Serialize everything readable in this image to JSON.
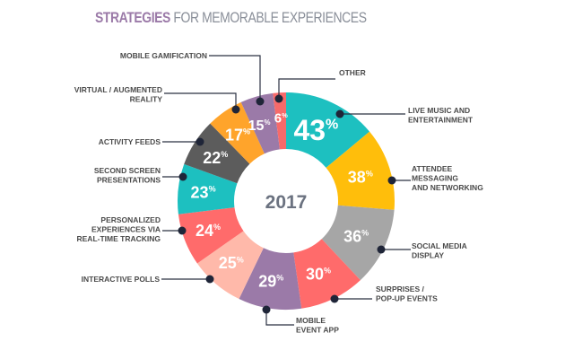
{
  "chart_data": {
    "type": "pie",
    "variant": "donut",
    "title_emphasis": "STRATEGIES",
    "title_rest": "FOR MEMORABLE EXPERIENCES",
    "center_label": "2017",
    "unit": "%",
    "slices": [
      {
        "label": [
          "LIVE MUSIC AND",
          "ENTERTAINMENT"
        ],
        "value": 43,
        "color": "#1dc0c0"
      },
      {
        "label": [
          "ATTENDEE",
          "MESSAGING",
          "AND NETWORKING"
        ],
        "value": 38,
        "color": "#ffbe0b"
      },
      {
        "label": [
          "SOCIAL MEDIA",
          "DISPLAY"
        ],
        "value": 36,
        "color": "#a6a6a6"
      },
      {
        "label": [
          "SURPRISES /",
          "POP-UP EVENTS"
        ],
        "value": 30,
        "color": "#ff6b6b"
      },
      {
        "label": [
          "MOBILE",
          "EVENT APP"
        ],
        "value": 29,
        "color": "#9b7aa8"
      },
      {
        "label": [
          "INTERACTIVE POLLS"
        ],
        "value": 25,
        "color": "#ffb9aa"
      },
      {
        "label": [
          "PERSONALIZED",
          "EXPERIENCES VIA",
          "REAL-TIME TRACKING"
        ],
        "value": 24,
        "color": "#ff6b6b"
      },
      {
        "label": [
          "SECOND SCREEN",
          "PRESENTATIONS"
        ],
        "value": 23,
        "color": "#1dc0c0"
      },
      {
        "label": [
          "ACTIVITY FEEDS"
        ],
        "value": 22,
        "color": "#5c5c5c"
      },
      {
        "label": [
          "VIRTUAL / AUGMENTED",
          "REALITY"
        ],
        "value": 17,
        "color": "#ffa42b"
      },
      {
        "label": [
          "MOBILE GAMIFICATION"
        ],
        "value": 15,
        "color": "#9b7aa8"
      },
      {
        "label": [
          "OTHER"
        ],
        "value": 6,
        "color": "#f76a6a"
      }
    ],
    "legend": "leader-line labels around chart"
  }
}
